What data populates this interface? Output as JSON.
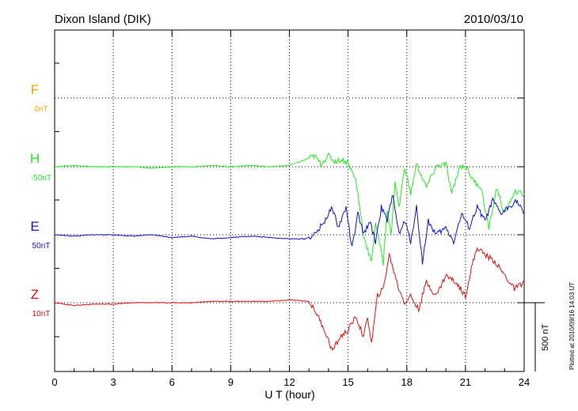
{
  "chart_data": {
    "type": "line",
    "title_left": "Dixon Island (DIK)",
    "title_right": "2010/03/10",
    "xlabel": "U T (hour)",
    "xlim": [
      0,
      24
    ],
    "xticks": [
      "0",
      "3",
      "6",
      "9",
      "12",
      "15",
      "18",
      "21",
      "24"
    ],
    "grid": true,
    "scale_bar_label": "500 nT",
    "scale_bar_nT": 500,
    "side_note": "Plotted at 2010/09/16 14:03 UT",
    "series": [
      {
        "name": "F",
        "baseline_label": "0nT",
        "color": "#f5a500",
        "x": [],
        "y": []
      },
      {
        "name": "H",
        "baseline_label": "-50nT",
        "color": "#22ee22",
        "x": [
          0,
          1,
          2,
          3,
          4,
          5,
          6,
          7,
          8,
          9,
          10,
          11,
          12,
          12.8,
          13.3,
          13.6,
          14,
          14.3,
          14.7,
          15,
          15.4,
          15.8,
          16,
          16.2,
          16.4,
          16.8,
          17,
          17.2,
          17.4,
          17.6,
          17.9,
          18.2,
          18.5,
          19,
          19.5,
          20,
          20.3,
          20.7,
          21,
          21.4,
          21.8,
          22.2,
          22.6,
          23,
          23.5,
          24
        ],
        "y": [
          0,
          10,
          0,
          0,
          0,
          -10,
          0,
          0,
          10,
          0,
          10,
          0,
          10,
          50,
          80,
          20,
          80,
          40,
          50,
          30,
          -100,
          -500,
          -600,
          -700,
          -400,
          -700,
          -300,
          -500,
          -100,
          -300,
          0,
          -200,
          20,
          -150,
          0,
          20,
          -200,
          0,
          10,
          -100,
          -150,
          -450,
          -150,
          -350,
          -180,
          -200
        ]
      },
      {
        "name": "E",
        "baseline_label": "50nT",
        "color": "#1111cc",
        "x": [
          0,
          1,
          2,
          3,
          4,
          5,
          6,
          7,
          8,
          9,
          10,
          11,
          12,
          12.8,
          13.3,
          13.8,
          14.2,
          14.5,
          14.9,
          15.2,
          15.5,
          15.8,
          16.1,
          16.4,
          16.7,
          17,
          17.3,
          17.6,
          17.9,
          18.2,
          18.5,
          18.8,
          19.1,
          19.5,
          20,
          20.4,
          20.8,
          21.2,
          21.6,
          22,
          22.4,
          22.8,
          23.2,
          23.6,
          24
        ],
        "y": [
          0,
          -10,
          0,
          0,
          -10,
          0,
          -20,
          -10,
          -30,
          -20,
          -10,
          -20,
          -30,
          -30,
          0,
          100,
          200,
          50,
          200,
          -100,
          150,
          0,
          100,
          -50,
          200,
          100,
          300,
          0,
          100,
          -50,
          200,
          -200,
          100,
          0,
          50,
          -50,
          150,
          50,
          200,
          100,
          250,
          150,
          200,
          250,
          150
        ]
      },
      {
        "name": "Z",
        "baseline_label": "10nT",
        "color": "#dd1111",
        "x": [
          0,
          1,
          2,
          3,
          4,
          5,
          6,
          7,
          8,
          9,
          10,
          11,
          12,
          13,
          13.4,
          13.8,
          14.2,
          14.6,
          15,
          15.4,
          15.8,
          16,
          16.2,
          16.5,
          16.8,
          17.1,
          17.3,
          17.6,
          17.9,
          18.2,
          18.6,
          19,
          19.5,
          20,
          20.5,
          21,
          21.3,
          21.6,
          22,
          22.5,
          23,
          23.5,
          24
        ],
        "y": [
          0,
          -20,
          -10,
          -10,
          0,
          0,
          0,
          0,
          10,
          10,
          10,
          10,
          20,
          10,
          -80,
          -200,
          -350,
          -250,
          -200,
          -100,
          -250,
          -100,
          -300,
          50,
          100,
          350,
          250,
          100,
          0,
          50,
          -50,
          150,
          50,
          200,
          150,
          50,
          250,
          400,
          350,
          300,
          200,
          100,
          150
        ]
      }
    ]
  }
}
